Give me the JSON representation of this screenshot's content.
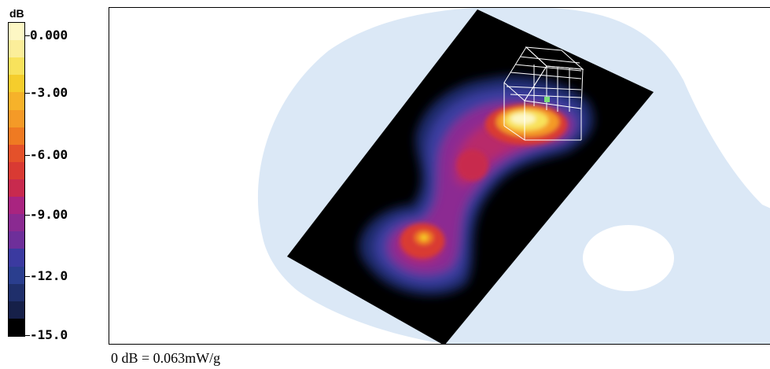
{
  "legend": {
    "unit": "dB",
    "ticks": [
      "0.000",
      "-3.00",
      "-6.00",
      "-9.00",
      "-12.0",
      "-15.0"
    ],
    "colors": [
      "#fdf7c4",
      "#fbee9a",
      "#f8e25c",
      "#f5cd2c",
      "#f6b22a",
      "#f49a27",
      "#ef7a22",
      "#e4512a",
      "#d93a33",
      "#c82a4e",
      "#a92480",
      "#8a2a91",
      "#6e2f9a",
      "#3b3aa0",
      "#2a3e8e",
      "#1f2f6b",
      "#162049",
      "#000000"
    ]
  },
  "footer": {
    "text": "0 dB = 0.063mW/g"
  },
  "plot": {
    "background_color": "#dbe8f6",
    "plate_color": "#000000",
    "wire_color": "#ffffff",
    "marker_color": "#7be07b"
  }
}
